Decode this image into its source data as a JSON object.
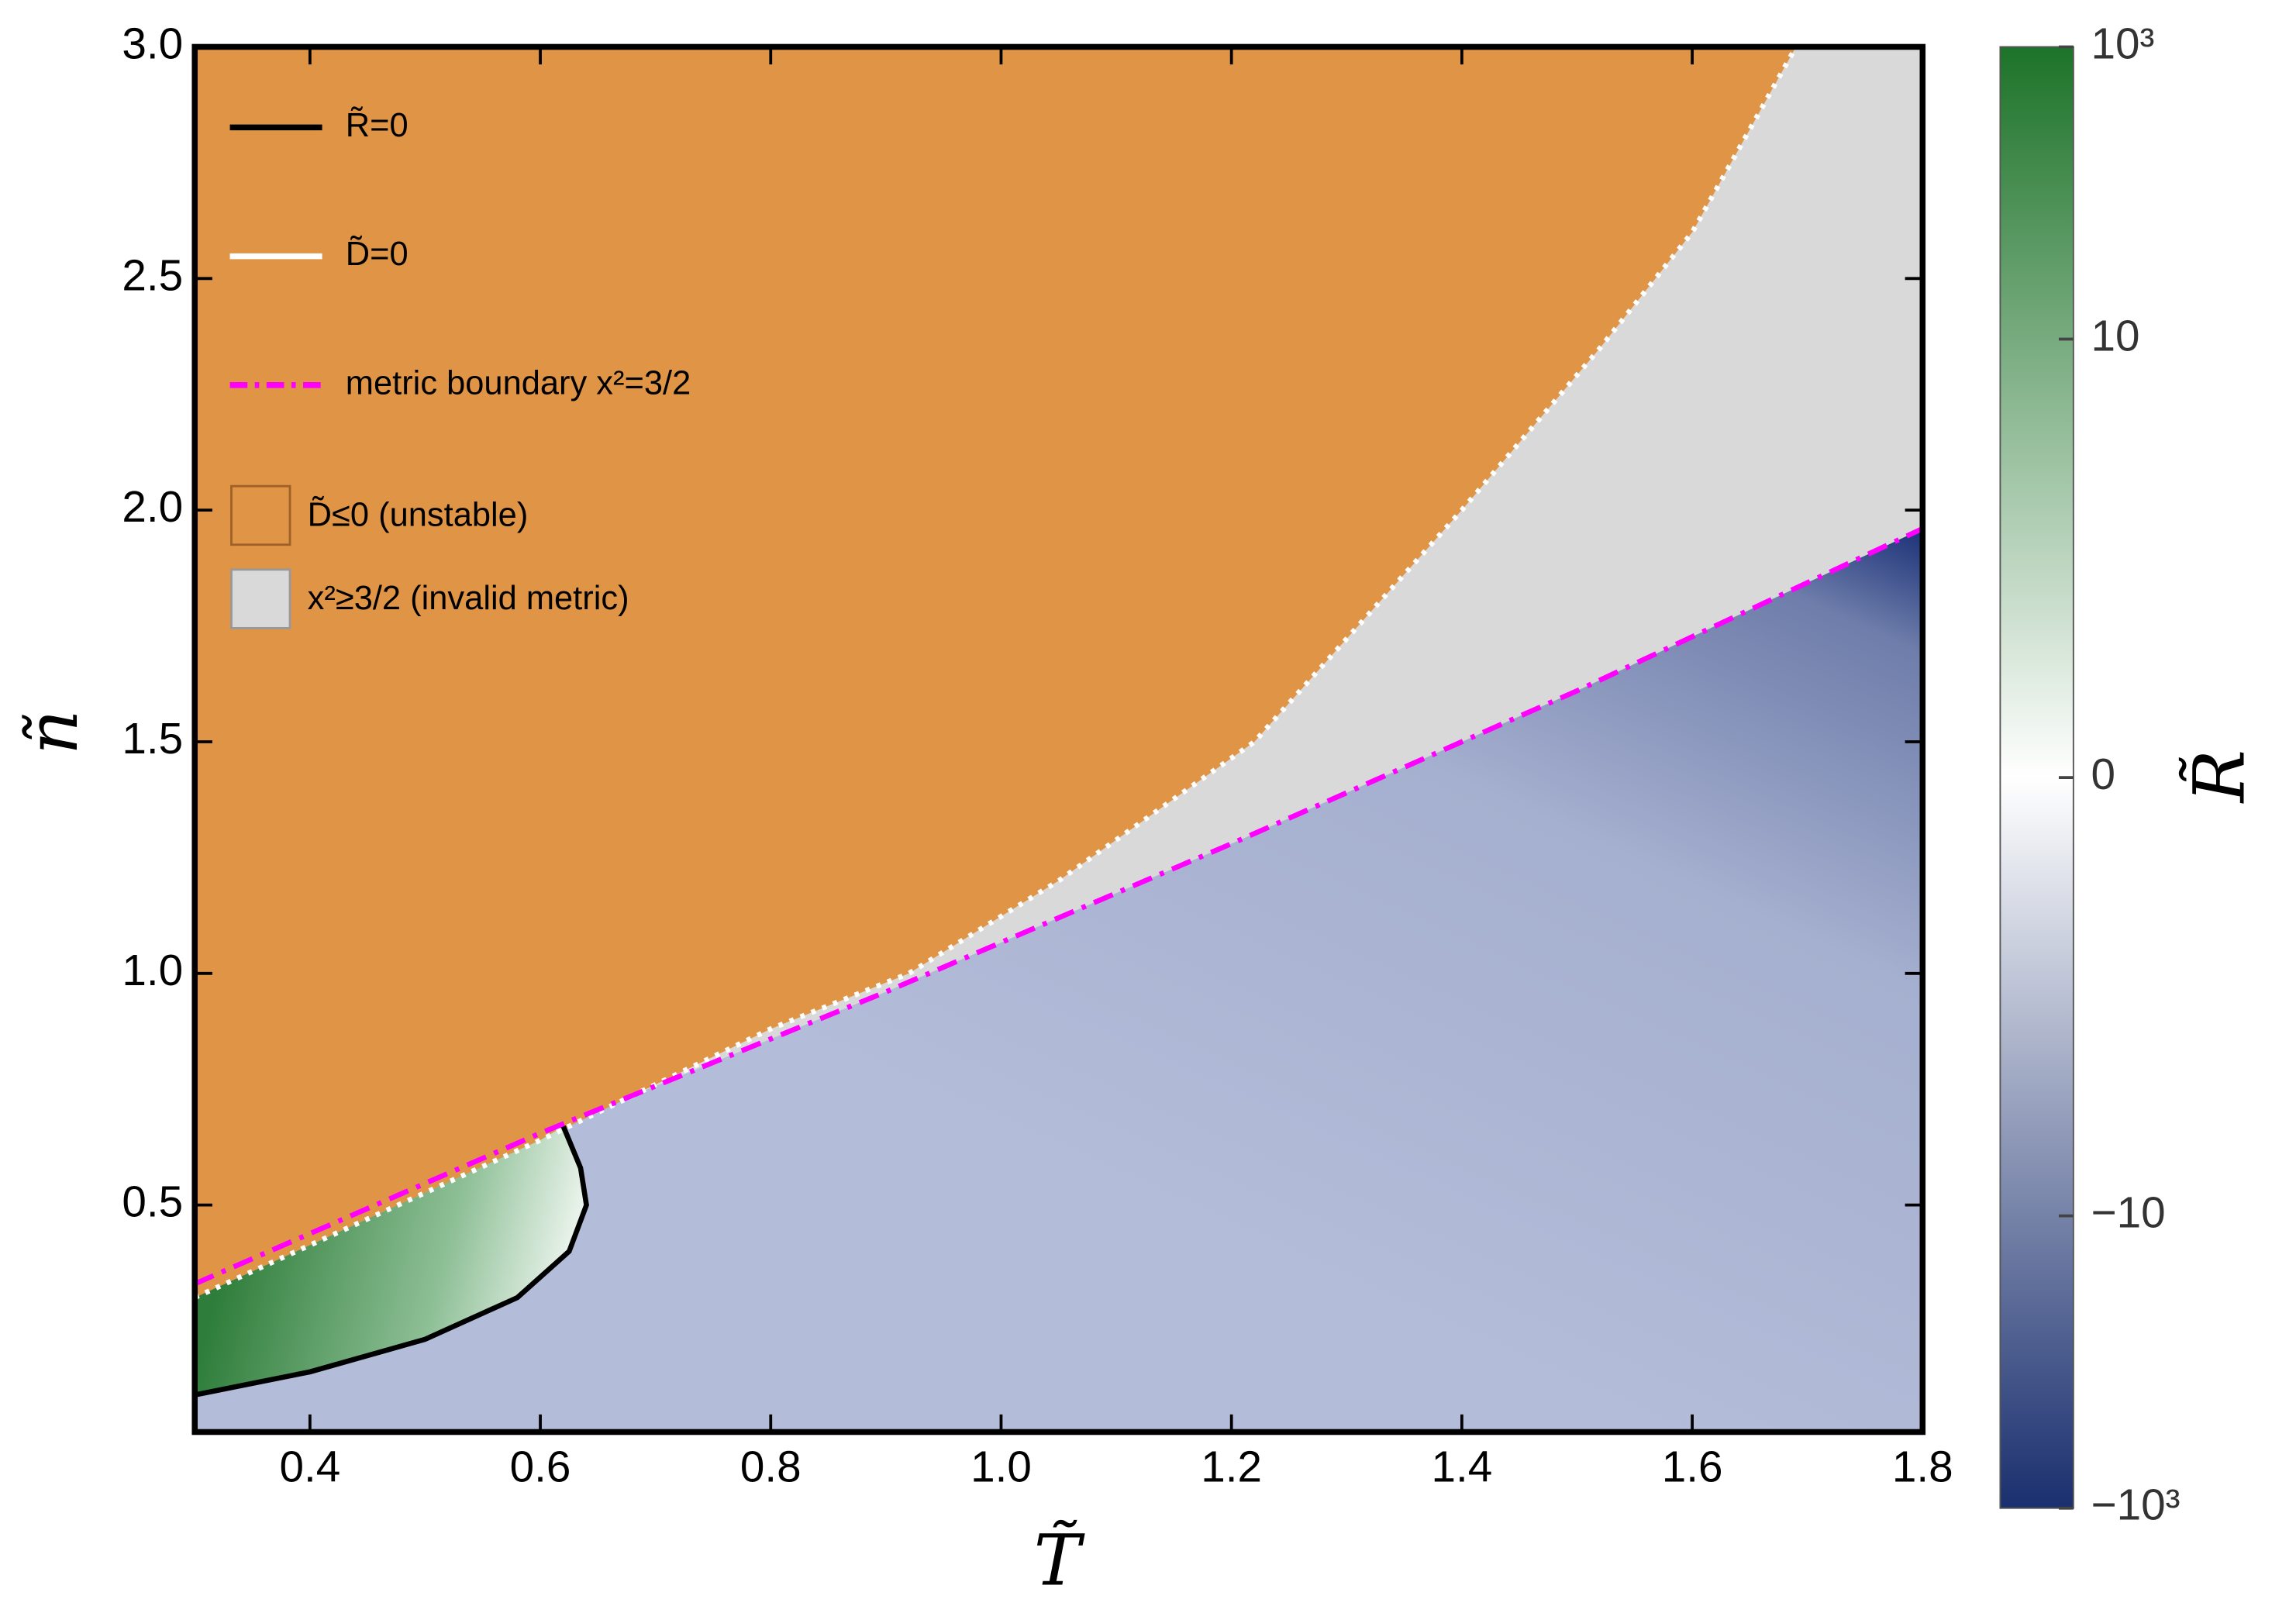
{
  "chart_data": {
    "type": "contour",
    "x_label": "T̃",
    "y_label": "ñ",
    "colorbar_label": "R̃",
    "xlim": [
      0.3,
      1.8
    ],
    "ylim": [
      0.01,
      3.0
    ],
    "xticks": [
      0.4,
      0.6,
      0.8,
      {
        "value": 1,
        "label": "1.0"
      },
      1.2,
      1.4,
      1.6,
      1.8
    ],
    "yticks": [
      0.5,
      {
        "value": 1,
        "label": "1.0"
      },
      1.5,
      {
        "value": 2,
        "label": "2.0"
      },
      2.5,
      {
        "value": 3,
        "label": "3.0"
      }
    ],
    "zlim": [
      -1000,
      1000
    ],
    "zticks": [
      {
        "value": 1000,
        "label": "10³"
      },
      10,
      0,
      {
        "value": -10,
        "label": "−10"
      },
      {
        "value": -1000,
        "label": "−10³"
      }
    ],
    "colormap": [
      "#1a2f6e",
      "#ffffff",
      "#1d7329"
    ],
    "series": [
      {
        "name": "R̃=0",
        "color": "#000000",
        "style": "solid",
        "x": [
          0.3,
          0.4,
          0.5,
          0.58,
          0.625,
          0.64,
          0.635,
          0.62
        ],
        "values": [
          0.09,
          0.14,
          0.21,
          0.3,
          0.4,
          0.5,
          0.58,
          0.67
        ]
      },
      {
        "name": "D̃=0",
        "color": "#ffffff",
        "style": "dotted",
        "x": [
          0.3,
          0.45,
          0.6,
          0.7,
          0.8,
          0.92,
          1.05,
          1.22,
          1.4,
          1.52,
          1.6,
          1.69
        ],
        "values": [
          0.3,
          0.47,
          0.64,
          0.76,
          0.88,
          1.0,
          1.2,
          1.5,
          2.0,
          2.35,
          2.6,
          3.0
        ]
      },
      {
        "name": "metric boundary x²=3/2",
        "color": "#ff00ff",
        "style": "dashdot",
        "x": [
          0.3,
          0.6,
          0.9,
          1.2,
          1.5,
          1.8
        ],
        "values": [
          0.33,
          0.655,
          0.96,
          1.28,
          1.61,
          1.96
        ]
      }
    ],
    "regions": [
      {
        "name": "D̃≤0 (unstable)",
        "color": "#e09445"
      },
      {
        "name": "x²≥3/2 (invalid metric)",
        "color": "#d9d9d9"
      }
    ]
  }
}
